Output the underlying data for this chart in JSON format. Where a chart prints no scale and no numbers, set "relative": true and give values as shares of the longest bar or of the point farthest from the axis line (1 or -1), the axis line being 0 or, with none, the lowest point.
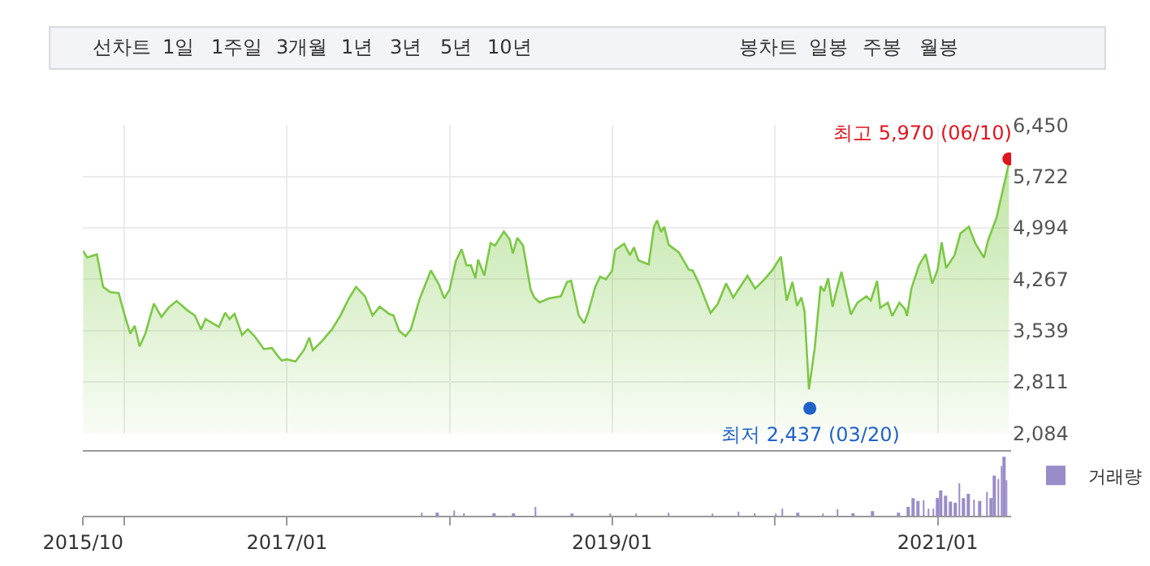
{
  "chart_data": [
    {
      "type": "area",
      "xlim": [
        "2015-10-01",
        "2021-06-15"
      ],
      "ylim": [
        2084,
        6450
      ],
      "yticks": [
        {
          "value": 2084,
          "label": "2,084"
        },
        {
          "value": 2811,
          "label": "2,811"
        },
        {
          "value": 3539,
          "label": "3,539"
        },
        {
          "value": 4267,
          "label": "4,267"
        },
        {
          "value": 4994,
          "label": "4,994"
        },
        {
          "value": 5722,
          "label": "5,722"
        },
        {
          "value": 6450,
          "label": "6,450"
        }
      ],
      "xticks": [
        {
          "value": "2016-01-01",
          "label": null
        },
        {
          "value": "2017-01-01",
          "label": null
        },
        {
          "value": "2018-01-01",
          "label": null
        },
        {
          "value": "2019-01-01",
          "label": null
        },
        {
          "value": "2020-01-01",
          "label": null
        },
        {
          "value": "2021-01-01",
          "label": null
        }
      ],
      "tick_labels": "y",
      "grid": true,
      "series": [
        {
          "color": "#7cc845",
          "x": [
            "2015-10-01",
            "2015-10-10",
            "2015-11-01",
            "2015-11-15",
            "2015-12-01",
            "2015-12-20",
            "2016-01-01",
            "2016-01-15",
            "2016-01-25",
            "2016-02-05",
            "2016-02-18",
            "2016-03-08",
            "2016-03-25",
            "2016-04-10",
            "2016-04-28",
            "2016-05-22",
            "2016-06-08",
            "2016-06-22",
            "2016-07-02",
            "2016-08-01",
            "2016-08-15",
            "2016-08-25",
            "2016-09-05",
            "2016-09-22",
            "2016-10-05",
            "2016-10-20",
            "2016-11-10",
            "2016-11-28",
            "2016-12-10",
            "2016-12-20",
            "2017-01-01",
            "2017-01-20",
            "2017-02-08",
            "2017-02-20",
            "2017-02-28",
            "2017-03-20",
            "2017-04-12",
            "2017-05-01",
            "2017-05-20",
            "2017-06-05",
            "2017-06-25",
            "2017-07-12",
            "2017-07-28",
            "2017-08-18",
            "2017-08-28",
            "2017-09-10",
            "2017-09-24",
            "2017-10-06",
            "2017-10-25",
            "2017-11-20",
            "2017-12-08",
            "2017-12-20",
            "2018-01-01",
            "2018-01-15",
            "2018-01-28",
            "2018-02-08",
            "2018-02-18",
            "2018-02-28",
            "2018-03-06",
            "2018-03-20",
            "2018-04-03",
            "2018-04-13",
            "2018-05-03",
            "2018-05-16",
            "2018-05-23",
            "2018-06-02",
            "2018-06-15",
            "2018-07-02",
            "2018-07-10",
            "2018-07-22",
            "2018-08-12",
            "2018-09-08",
            "2018-09-22",
            "2018-10-01",
            "2018-10-18",
            "2018-10-30",
            "2018-11-08",
            "2018-11-24",
            "2018-12-05",
            "2018-12-18",
            "2019-01-01",
            "2019-01-08",
            "2019-01-28",
            "2019-02-10",
            "2019-02-19",
            "2019-03-01",
            "2019-03-24",
            "2019-04-05",
            "2019-04-12",
            "2019-04-21",
            "2019-04-28",
            "2019-05-08",
            "2019-05-31",
            "2019-06-22",
            "2019-07-01",
            "2019-07-15",
            "2019-08-10",
            "2019-08-26",
            "2019-09-14",
            "2019-09-30",
            "2019-10-13",
            "2019-11-01",
            "2019-11-18",
            "2019-12-08",
            "2019-12-26",
            "2020-01-15",
            "2020-01-28",
            "2020-02-10",
            "2020-02-20",
            "2020-03-01",
            "2020-03-08",
            "2020-03-18",
            "2020-03-31",
            "2020-04-13",
            "2020-04-21",
            "2020-04-30",
            "2020-05-10",
            "2020-05-19",
            "2020-05-30",
            "2020-06-20",
            "2020-07-05",
            "2020-07-25",
            "2020-08-04",
            "2020-08-18",
            "2020-08-25",
            "2020-09-11",
            "2020-09-21",
            "2020-10-07",
            "2020-10-20",
            "2020-10-24",
            "2020-11-03",
            "2020-11-20",
            "2020-12-05",
            "2020-12-20",
            "2021-01-01",
            "2021-01-10",
            "2021-01-20",
            "2021-02-08",
            "2021-02-21",
            "2021-03-12",
            "2021-03-27",
            "2021-04-15",
            "2021-04-24",
            "2021-05-13",
            "2021-06-10"
          ],
          "values": [
            4668,
            4573,
            4617,
            4156,
            4082,
            4068,
            3789,
            3496,
            3606,
            3313,
            3496,
            3921,
            3731,
            3862,
            3958,
            3826,
            3752,
            3555,
            3701,
            3591,
            3789,
            3701,
            3775,
            3474,
            3555,
            3459,
            3276,
            3291,
            3188,
            3115,
            3130,
            3100,
            3262,
            3438,
            3262,
            3386,
            3555,
            3752,
            3994,
            4156,
            4024,
            3752,
            3877,
            3775,
            3752,
            3533,
            3459,
            3555,
            3972,
            4390,
            4192,
            3994,
            4119,
            4522,
            4690,
            4463,
            4463,
            4280,
            4544,
            4317,
            4778,
            4742,
            4940,
            4830,
            4632,
            4852,
            4742,
            4119,
            4009,
            3936,
            3994,
            4024,
            4229,
            4243,
            3752,
            3642,
            3789,
            4156,
            4302,
            4265,
            4388,
            4680,
            4768,
            4607,
            4717,
            4534,
            4475,
            5009,
            5097,
            4936,
            5009,
            4753,
            4644,
            4402,
            4388,
            4205,
            3788,
            3912,
            4205,
            4007,
            4132,
            4315,
            4132,
            4256,
            4388,
            4585,
            3964,
            4227,
            3890,
            4007,
            3817,
            2706,
            3291,
            4168,
            4095,
            4278,
            3876,
            4110,
            4373,
            3766,
            3934,
            4022,
            3964,
            4242,
            3861,
            3934,
            3744,
            3934,
            3839,
            3744,
            4132,
            4461,
            4622,
            4205,
            4402,
            4790,
            4424,
            4607,
            4914,
            5009,
            4768,
            4571,
            4812,
            5134,
            5909
          ]
        },
        {
          "type": "scatter",
          "x": [
            "2021-06-10",
            "2020-03-20"
          ],
          "values": [
            5970,
            2437
          ],
          "colors": [
            "#e0141e",
            "#1f62c9"
          ]
        }
      ],
      "annotations": [
        "선차트",
        "1일",
        "1주일",
        "3개월",
        "1년",
        "3년",
        "5년",
        "10년",
        "봉차트",
        "일봉",
        "주봉",
        "월봉",
        {
          "text": "최고 5,970 (06/10)",
          "x": "2021-06-10",
          "y": 5970
        },
        {
          "text": "최저 2,437 (03/20)",
          "x": "2020-03-20",
          "y": 2437
        }
      ]
    },
    {
      "type": "bar",
      "relative": true,
      "legend": "top right",
      "tick_labels": "x",
      "xlim": [
        "2015-10-01",
        "2021-06-15"
      ],
      "xticks": [
        {
          "value": "2015-10-01",
          "label": "2015/10"
        },
        {
          "value": "2016-01-01",
          "label": null
        },
        {
          "value": "2017-01-01",
          "label": "2017/01"
        },
        {
          "value": "2018-01-01",
          "label": null
        },
        {
          "value": "2019-01-01",
          "label": "2019/01"
        },
        {
          "value": "2020-01-01",
          "label": null
        },
        {
          "value": "2021-01-01",
          "label": "2021/01"
        }
      ],
      "x": [
        "2017-10-30",
        "2017-12-05",
        "2018-01-12",
        "2018-02-03",
        "2018-04-10",
        "2018-05-24",
        "2018-07-13",
        "2018-10-03",
        "2018-12-27",
        "2019-02-24",
        "2019-05-08",
        "2019-08-14",
        "2019-10-12",
        "2019-11-17",
        "2020-01-03",
        "2020-01-18",
        "2020-02-21",
        "2020-04-19",
        "2020-05-22",
        "2020-06-24",
        "2020-08-07",
        "2020-10-05",
        "2020-10-27",
        "2020-11-06",
        "2020-11-18",
        "2020-11-30",
        "2020-12-11",
        "2020-12-22",
        "2021-01-01",
        "2021-01-08",
        "2021-01-18",
        "2021-01-30",
        "2021-02-09",
        "2021-02-18",
        "2021-02-28",
        "2021-03-11",
        "2021-03-23",
        "2021-04-06",
        "2021-04-21",
        "2021-05-01",
        "2021-05-08",
        "2021-05-17",
        "2021-05-25",
        "2021-05-30",
        "2021-06-04"
      ],
      "series": [
        {
          "name": "거래량",
          "color": "#9a8cc8",
          "values": [
            0.05,
            0.05,
            0.09,
            0.04,
            0.04,
            0.04,
            0.15,
            0.03,
            0.03,
            0.03,
            0.05,
            0.03,
            0.07,
            0.04,
            0.03,
            0.12,
            0.05,
            0.03,
            0.11,
            0.04,
            0.08,
            0.05,
            0.15,
            0.3,
            0.25,
            0.26,
            0.12,
            0.12,
            0.3,
            0.43,
            0.34,
            0.24,
            0.22,
            0.55,
            0.3,
            0.37,
            0.27,
            0.25,
            0.4,
            0.3,
            0.68,
            0.62,
            0.84,
            1,
            0.6
          ]
        }
      ]
    }
  ]
}
